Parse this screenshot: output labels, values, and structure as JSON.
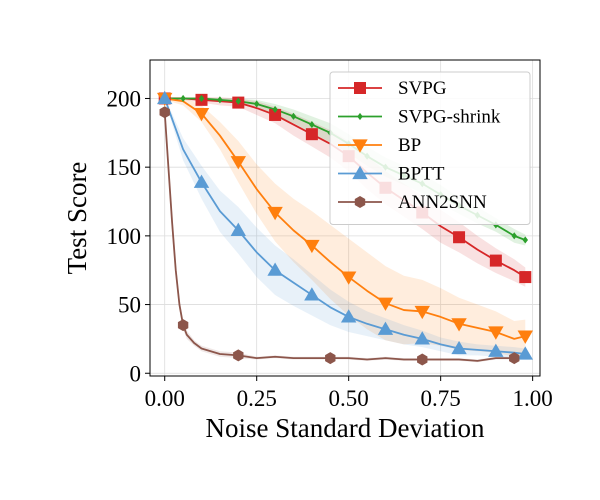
{
  "chart_data": {
    "type": "line",
    "title": "",
    "xlabel": "Noise Standard Deviation",
    "ylabel": "Test Score",
    "xlim": [
      -0.04,
      1.02
    ],
    "ylim": [
      -2,
      228
    ],
    "xticks": [
      0.0,
      0.25,
      0.5,
      0.75,
      1.0
    ],
    "xtick_labels": [
      "0.00",
      "0.25",
      "0.50",
      "0.75",
      "1.00"
    ],
    "yticks": [
      0,
      50,
      100,
      150,
      200
    ],
    "ytick_labels": [
      "0",
      "50",
      "100",
      "150",
      "200"
    ],
    "grid": true,
    "legend_position": "top-right",
    "series": [
      {
        "name": "SVPG",
        "color": "#d62728",
        "marker": "square",
        "marker_every": 2,
        "x": [
          0.0,
          0.05,
          0.1,
          0.15,
          0.2,
          0.25,
          0.3,
          0.35,
          0.4,
          0.45,
          0.5,
          0.55,
          0.6,
          0.65,
          0.7,
          0.75,
          0.8,
          0.85,
          0.9,
          0.95,
          0.98
        ],
        "y": [
          200,
          200,
          199,
          198,
          197,
          193,
          188,
          181,
          174,
          167,
          158,
          146,
          135,
          126,
          117,
          107,
          99,
          90,
          82,
          75,
          70
        ],
        "band": [
          1,
          1,
          2,
          3,
          3,
          5,
          6,
          8,
          9,
          10,
          11,
          12,
          12,
          12,
          12,
          12,
          11,
          10,
          9,
          8,
          7
        ]
      },
      {
        "name": "SVPG-shrink",
        "color": "#2ca02c",
        "marker": "diamond",
        "marker_every": 1,
        "x": [
          0.0,
          0.05,
          0.1,
          0.15,
          0.2,
          0.25,
          0.3,
          0.35,
          0.4,
          0.45,
          0.5,
          0.55,
          0.6,
          0.65,
          0.7,
          0.75,
          0.8,
          0.85,
          0.9,
          0.95,
          0.98
        ],
        "y": [
          200,
          200,
          200,
          199,
          198,
          196,
          192,
          187,
          181,
          175,
          167,
          158,
          150,
          144,
          138,
          130,
          122,
          115,
          108,
          100,
          97
        ],
        "band": [
          0,
          0,
          1,
          1,
          2,
          3,
          4,
          5,
          6,
          7,
          7,
          7,
          7,
          7,
          7,
          7,
          6,
          6,
          5,
          5,
          4
        ]
      },
      {
        "name": "BP",
        "color": "#ff7f0e",
        "marker": "triangle-down",
        "marker_every": 2,
        "x": [
          0.0,
          0.05,
          0.1,
          0.15,
          0.2,
          0.25,
          0.3,
          0.35,
          0.4,
          0.45,
          0.5,
          0.55,
          0.6,
          0.65,
          0.7,
          0.75,
          0.8,
          0.85,
          0.9,
          0.95,
          0.98
        ],
        "y": [
          200,
          198,
          189,
          173,
          154,
          134,
          117,
          104,
          93,
          81,
          70,
          60,
          51,
          46,
          45,
          41,
          36,
          33,
          30,
          25,
          27
        ],
        "band": [
          1,
          3,
          6,
          10,
          15,
          18,
          21,
          23,
          25,
          27,
          28,
          28,
          27,
          25,
          23,
          21,
          19,
          17,
          15,
          13,
          12
        ]
      },
      {
        "name": "BPTT",
        "color": "#5a9bd4",
        "marker": "triangle-up",
        "marker_every": 2,
        "x": [
          0.0,
          0.05,
          0.1,
          0.15,
          0.2,
          0.25,
          0.3,
          0.35,
          0.4,
          0.45,
          0.5,
          0.55,
          0.6,
          0.65,
          0.7,
          0.75,
          0.8,
          0.85,
          0.9,
          0.95,
          0.98
        ],
        "y": [
          200,
          163,
          139,
          118,
          104,
          88,
          75,
          66,
          57,
          48,
          41,
          36,
          32,
          28,
          25,
          21,
          18,
          17,
          16,
          15,
          14
        ],
        "band": [
          1,
          8,
          12,
          15,
          17,
          18,
          18,
          17,
          15,
          13,
          11,
          9,
          8,
          7,
          6,
          5,
          5,
          4,
          4,
          4,
          4
        ]
      },
      {
        "name": "ANN2SNN",
        "color": "#8c564b",
        "marker": "hexagon",
        "marker_every": 5,
        "x": [
          0.0,
          0.01,
          0.02,
          0.03,
          0.04,
          0.05,
          0.06,
          0.08,
          0.1,
          0.15,
          0.2,
          0.25,
          0.3,
          0.35,
          0.4,
          0.45,
          0.5,
          0.55,
          0.6,
          0.65,
          0.7,
          0.75,
          0.8,
          0.85,
          0.9,
          0.95,
          0.98
        ],
        "y": [
          190,
          150,
          110,
          75,
          50,
          35,
          28,
          22,
          18,
          14,
          13,
          11,
          12,
          11,
          11,
          11,
          11,
          10,
          11,
          10,
          10,
          10,
          10,
          9,
          11,
          11,
          11
        ],
        "band": [
          2,
          6,
          8,
          6,
          4,
          3,
          3,
          2,
          2,
          2,
          2,
          1,
          1,
          1,
          1,
          1,
          1,
          1,
          1,
          1,
          1,
          1,
          1,
          1,
          1,
          1,
          1
        ]
      }
    ]
  }
}
